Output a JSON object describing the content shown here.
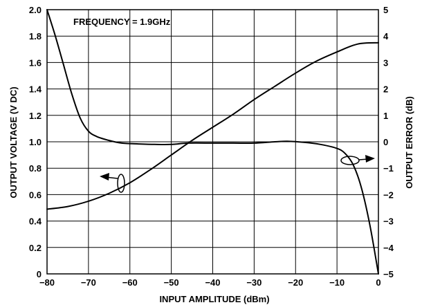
{
  "chart_data": {
    "type": "line",
    "title": "",
    "annotation": "FREQUENCY = 1.9GHz",
    "xlabel": "INPUT AMPLITUDE (dBm)",
    "ylabel_left": "OUTPUT VOLTAGE (V DC)",
    "ylabel_right": "OUTPUT ERROR (dB)",
    "xlim": [
      -80,
      0
    ],
    "ylim_left": [
      0,
      2.0
    ],
    "ylim_right": [
      -5,
      5
    ],
    "grid": true,
    "x_ticks": [
      "−80",
      "−70",
      "−60",
      "−50",
      "−40",
      "−30",
      "−20",
      "−10",
      "0"
    ],
    "y_left_ticks": [
      "0",
      "0.2",
      "0.4",
      "0.6",
      "0.8",
      "1.0",
      "1.2",
      "1.4",
      "1.6",
      "1.8",
      "2.0"
    ],
    "y_right_ticks": [
      "−5",
      "−4",
      "−3",
      "−2",
      "−1",
      "0",
      "1",
      "2",
      "3",
      "4",
      "5"
    ],
    "series": [
      {
        "axis": "left",
        "x": [
          -80,
          -75,
          -70,
          -65,
          -60,
          -55,
          -50,
          -45,
          -40,
          -35,
          -30,
          -25,
          -20,
          -15,
          -10,
          -5,
          0
        ],
        "y": [
          0.49,
          0.51,
          0.55,
          0.61,
          0.69,
          0.79,
          0.9,
          1.01,
          1.11,
          1.21,
          1.32,
          1.42,
          1.52,
          1.61,
          1.68,
          1.74,
          1.75
        ]
      },
      {
        "axis": "right",
        "x": [
          -80,
          -78,
          -76,
          -74,
          -72,
          -70,
          -68,
          -65,
          -62,
          -58,
          -54,
          -50,
          -46,
          -40,
          -35,
          -30,
          -25,
          -22,
          -18,
          -14,
          -10,
          -8,
          -6,
          -4,
          -2,
          0
        ],
        "y": [
          5.0,
          4.0,
          2.9,
          1.8,
          0.9,
          0.4,
          0.2,
          0.05,
          -0.05,
          -0.08,
          -0.1,
          -0.1,
          -0.05,
          -0.05,
          -0.05,
          -0.05,
          0.0,
          0.02,
          -0.02,
          -0.1,
          -0.25,
          -0.45,
          -0.9,
          -1.8,
          -3.2,
          -5.0
        ]
      }
    ]
  }
}
